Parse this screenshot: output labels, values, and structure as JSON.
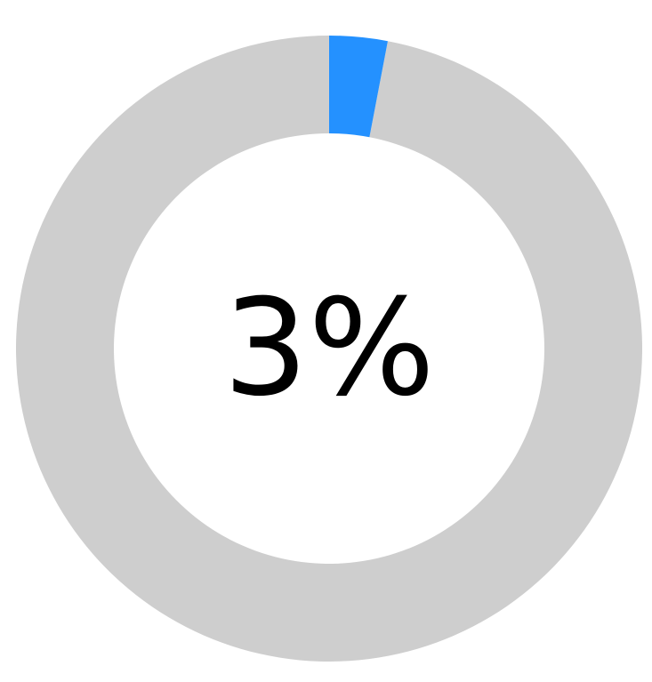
{
  "chart_data": {
    "type": "pie",
    "variant": "donut",
    "values": [
      3,
      97
    ],
    "label": "3%",
    "start": "top",
    "direction": "clockwise",
    "colors": {
      "progress": "#2491FF",
      "track": "#CECECE"
    }
  }
}
